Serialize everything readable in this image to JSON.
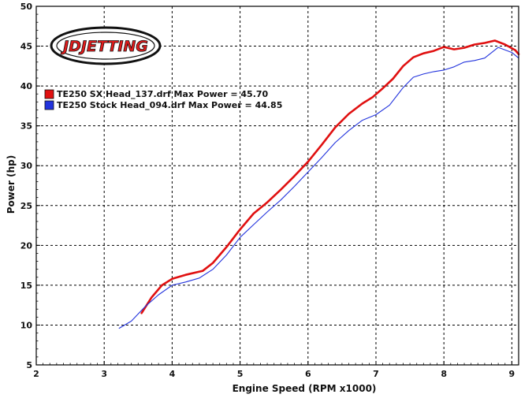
{
  "logo": {
    "text": "JDJETTING"
  },
  "chart_data": {
    "type": "line",
    "title": "",
    "xlabel": "Engine Speed (RPM x1000)",
    "ylabel": "Power (hp)",
    "xlim": [
      2,
      9.1
    ],
    "ylim": [
      5,
      50
    ],
    "xticks": [
      2,
      3,
      4,
      5,
      6,
      7,
      8,
      9
    ],
    "yticks": [
      5,
      10,
      15,
      20,
      25,
      30,
      35,
      40,
      45,
      50
    ],
    "grid": true,
    "legend_position": "top-left",
    "series": [
      {
        "name": "TE250 SX Head_137.drf Max Power = 45.70",
        "color": "#e01010",
        "x": [
          3.55,
          3.7,
          3.85,
          4.0,
          4.2,
          4.45,
          4.6,
          4.8,
          5.0,
          5.2,
          5.4,
          5.6,
          5.8,
          6.0,
          6.2,
          6.4,
          6.6,
          6.8,
          6.95,
          7.1,
          7.25,
          7.4,
          7.55,
          7.7,
          7.85,
          8.0,
          8.15,
          8.3,
          8.45,
          8.6,
          8.75,
          8.9,
          9.05,
          9.1
        ],
        "y": [
          11.5,
          13.5,
          15.0,
          15.8,
          16.3,
          16.8,
          17.8,
          19.8,
          22.0,
          24.0,
          25.4,
          27.0,
          28.7,
          30.5,
          32.6,
          34.8,
          36.5,
          37.8,
          38.6,
          39.7,
          40.9,
          42.5,
          43.6,
          44.1,
          44.4,
          44.9,
          44.6,
          44.8,
          45.2,
          45.4,
          45.7,
          45.2,
          44.5,
          44.0
        ]
      },
      {
        "name": "TE250 Stock Head_094.drf Max Power = 44.85",
        "color": "#2233dd",
        "x": [
          3.22,
          3.4,
          3.6,
          3.8,
          4.0,
          4.2,
          4.4,
          4.6,
          4.8,
          5.0,
          5.2,
          5.4,
          5.6,
          5.8,
          6.0,
          6.2,
          6.4,
          6.6,
          6.8,
          7.0,
          7.2,
          7.4,
          7.55,
          7.7,
          7.85,
          8.0,
          8.15,
          8.3,
          8.45,
          8.6,
          8.8,
          9.0,
          9.1
        ],
        "y": [
          9.6,
          10.5,
          12.3,
          13.8,
          15.0,
          15.4,
          15.9,
          17.0,
          18.8,
          21.0,
          22.6,
          24.2,
          25.7,
          27.4,
          29.2,
          31.0,
          32.9,
          34.4,
          35.7,
          36.4,
          37.6,
          39.8,
          41.1,
          41.5,
          41.8,
          42.0,
          42.4,
          43.0,
          43.2,
          43.5,
          44.85,
          44.2,
          43.5
        ]
      }
    ]
  }
}
